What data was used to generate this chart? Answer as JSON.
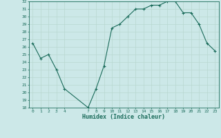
{
  "x": [
    0,
    1,
    2,
    3,
    4,
    7,
    8,
    9,
    10,
    11,
    12,
    13,
    14,
    15,
    16,
    17,
    18,
    19,
    20,
    21,
    22,
    23
  ],
  "y": [
    26.5,
    24.5,
    25.0,
    23.0,
    20.5,
    18.0,
    20.5,
    23.5,
    28.5,
    29.0,
    30.0,
    31.0,
    31.0,
    31.5,
    31.5,
    32.0,
    32.0,
    30.5,
    30.5,
    29.0,
    26.5,
    25.5
  ],
  "line_color": "#1a6b5a",
  "bg_color": "#cce8e8",
  "grid_color": "#b8d8d0",
  "xlabel": "Humidex (Indice chaleur)",
  "ylim": [
    18,
    32
  ],
  "xlim": [
    -0.5,
    23.5
  ],
  "yticks": [
    18,
    19,
    20,
    21,
    22,
    23,
    24,
    25,
    26,
    27,
    28,
    29,
    30,
    31,
    32
  ],
  "xticks": [
    0,
    1,
    2,
    3,
    4,
    7,
    8,
    9,
    10,
    11,
    12,
    13,
    14,
    15,
    16,
    17,
    18,
    19,
    20,
    21,
    22,
    23
  ],
  "tick_color": "#1a6b5a",
  "xlabel_color": "#1a6b5a",
  "marker": "+"
}
